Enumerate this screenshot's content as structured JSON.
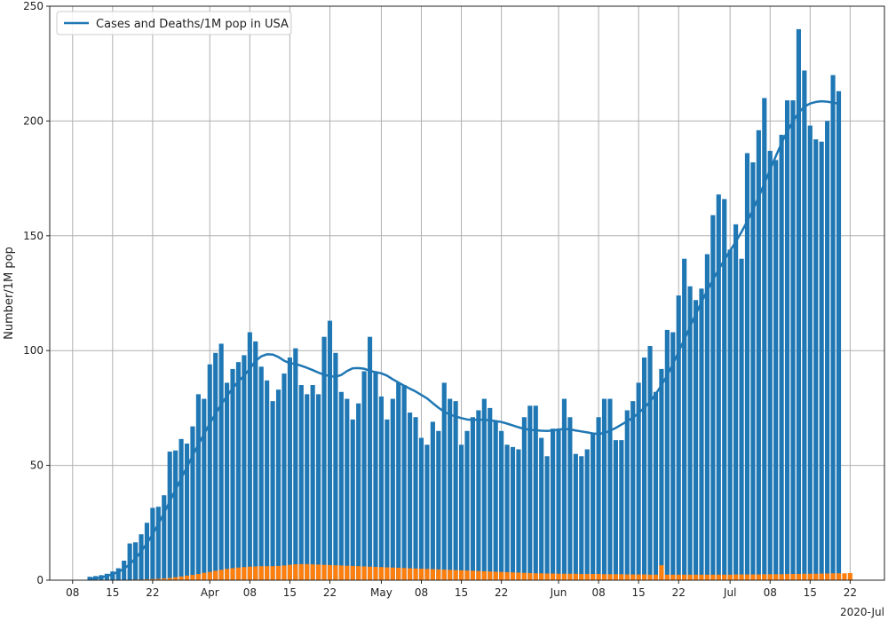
{
  "chart_data": {
    "type": "bar",
    "title": "",
    "xlabel": "",
    "ylabel": "Number/1M pop",
    "x_offset_label": "2020-Jul",
    "ylim": [
      0,
      250
    ],
    "grid": true,
    "legend_position": "top-left",
    "legend": [
      {
        "label": "Cases and Deaths/1M pop in USA",
        "color": "#1f77b4"
      }
    ],
    "y_ticks": [
      0,
      50,
      100,
      150,
      200,
      250
    ],
    "x_ticks": [
      {
        "date": "2020-03-08",
        "label": "08"
      },
      {
        "date": "2020-03-15",
        "label": "15"
      },
      {
        "date": "2020-03-22",
        "label": "22"
      },
      {
        "date": "2020-04-01",
        "label": "Apr"
      },
      {
        "date": "2020-04-08",
        "label": "08"
      },
      {
        "date": "2020-04-15",
        "label": "15"
      },
      {
        "date": "2020-04-22",
        "label": "22"
      },
      {
        "date": "2020-05-01",
        "label": "May"
      },
      {
        "date": "2020-05-08",
        "label": "08"
      },
      {
        "date": "2020-05-15",
        "label": "15"
      },
      {
        "date": "2020-05-22",
        "label": "22"
      },
      {
        "date": "2020-06-01",
        "label": "Jun"
      },
      {
        "date": "2020-06-08",
        "label": "08"
      },
      {
        "date": "2020-06-15",
        "label": "15"
      },
      {
        "date": "2020-06-22",
        "label": "22"
      },
      {
        "date": "2020-07-01",
        "label": "Jul"
      },
      {
        "date": "2020-07-08",
        "label": "08"
      },
      {
        "date": "2020-07-15",
        "label": "15"
      },
      {
        "date": "2020-07-22",
        "label": "22"
      }
    ],
    "x_start": "2020-03-11",
    "series": [
      {
        "name": "Cases and Deaths/1M pop in USA",
        "kind": "bar",
        "color": "#1f77b4",
        "values": [
          1.5,
          1.8,
          2.2,
          2.8,
          3.8,
          5.2,
          8.5,
          16,
          16.5,
          20,
          25,
          31.5,
          32,
          37,
          56,
          56.5,
          61.5,
          59.5,
          67,
          81,
          79,
          94,
          99,
          103,
          86,
          92,
          95,
          98,
          108,
          104,
          93,
          87,
          78,
          83,
          90,
          97,
          101,
          85,
          81,
          85,
          81,
          106,
          113,
          99,
          82,
          79,
          70,
          77,
          91,
          106,
          91,
          80,
          70,
          79,
          86,
          85,
          73,
          71,
          62,
          59,
          69,
          65,
          86,
          79,
          78,
          59,
          65,
          71,
          74,
          79,
          75,
          69,
          65,
          59,
          58,
          57,
          71,
          76,
          76,
          62,
          54,
          66,
          66,
          79,
          71,
          55,
          54,
          57,
          64,
          71,
          79,
          79,
          61,
          61,
          74,
          78,
          86,
          97,
          102,
          82,
          92,
          109,
          108,
          124,
          140,
          128,
          122,
          127,
          142,
          159,
          168,
          166,
          144,
          155,
          140,
          186,
          182,
          196,
          210,
          187,
          183,
          194,
          209,
          209,
          240,
          222,
          198,
          192,
          191,
          200,
          220,
          213
        ],
        "smoothed": [
          0.6,
          0.8,
          1.2,
          1.8,
          2.6,
          3.6,
          5.0,
          6.9,
          9.5,
          12.6,
          16.0,
          20.0,
          24.5,
          29.3,
          34.3,
          39.4,
          44.4,
          49.3,
          54.2,
          59.1,
          63.7,
          68.2,
          72.5,
          76.6,
          80.2,
          83.6,
          86.6,
          89.1,
          92.1,
          95.5,
          97.5,
          98.4,
          98.3,
          97.2,
          95.6,
          94.5,
          94.2,
          93.4,
          92.5,
          91.5,
          90.4,
          89.5,
          88.9,
          88.6,
          89.4,
          91.1,
          92.3,
          92.4,
          92.1,
          91.2,
          90.6,
          90.1,
          89.1,
          87.5,
          86.1,
          84.7,
          83.4,
          82.2,
          80.7,
          79.2,
          77.1,
          75.1,
          73.4,
          72.1,
          71.3,
          70.6,
          70.0,
          69.8,
          69.9,
          69.9,
          69.6,
          69.3,
          68.9,
          68.2,
          67.4,
          66.6,
          65.9,
          65.5,
          65.3,
          65.1,
          65.0,
          65.2,
          65.6,
          65.9,
          65.7,
          65.2,
          64.8,
          64.4,
          63.9,
          63.7,
          64.1,
          65.1,
          66.3,
          67.8,
          69.2,
          70.8,
          72.8,
          75.1,
          77.8,
          81.1,
          84.9,
          89.2,
          94.2,
          99.5,
          104.9,
          110.4,
          115.8,
          121.1,
          126.1,
          130.9,
          135.3,
          139.5,
          143.5,
          147.4,
          151.7,
          156.3,
          161.4,
          166.9,
          172.8,
          178.8,
          184.7,
          190.3,
          195.4,
          199.9,
          203.6,
          206.3,
          207.6,
          208.3,
          208.6,
          208.4,
          208.0,
          207.6
        ]
      },
      {
        "name": "",
        "kind": "bar",
        "color": "#ff7f0e",
        "values": [
          0,
          0,
          0,
          0,
          0.1,
          0.1,
          0.2,
          0.2,
          0.3,
          0.3,
          0.4,
          0.5,
          0.6,
          0.8,
          1.0,
          1.3,
          1.6,
          2.0,
          2.3,
          2.7,
          3.2,
          3.6,
          4.1,
          4.5,
          4.9,
          5.2,
          5.5,
          5.7,
          5.9,
          6.0,
          6.1,
          6.1,
          6.1,
          6.2,
          6.4,
          6.7,
          6.9,
          7.0,
          7.0,
          6.9,
          6.8,
          6.7,
          6.6,
          6.5,
          6.4,
          6.3,
          6.2,
          6.1,
          6.0,
          5.9,
          5.8,
          5.7,
          5.6,
          5.5,
          5.4,
          5.3,
          5.2,
          5.1,
          5.0,
          4.9,
          4.8,
          4.7,
          4.6,
          4.5,
          4.4,
          4.3,
          4.2,
          4.1,
          4.0,
          3.9,
          3.8,
          3.7,
          3.6,
          3.5,
          3.4,
          3.3,
          3.2,
          3.1,
          3.0,
          3.0,
          2.9,
          2.9,
          2.8,
          2.8,
          2.8,
          2.8,
          2.7,
          2.7,
          2.7,
          2.7,
          2.6,
          2.6,
          2.6,
          2.6,
          2.5,
          2.5,
          2.5,
          2.5,
          2.4,
          2.4,
          6.5,
          2.4,
          2.4,
          2.4,
          2.4,
          2.4,
          2.4,
          2.4,
          2.4,
          2.4,
          2.4,
          2.4,
          2.4,
          2.5,
          2.5,
          2.5,
          2.5,
          2.5,
          2.6,
          2.6,
          2.6,
          2.6,
          2.7,
          2.7,
          2.7,
          2.8,
          2.8,
          2.8,
          2.9,
          2.9,
          3.0,
          3.0,
          3.0,
          3.1
        ]
      }
    ]
  }
}
